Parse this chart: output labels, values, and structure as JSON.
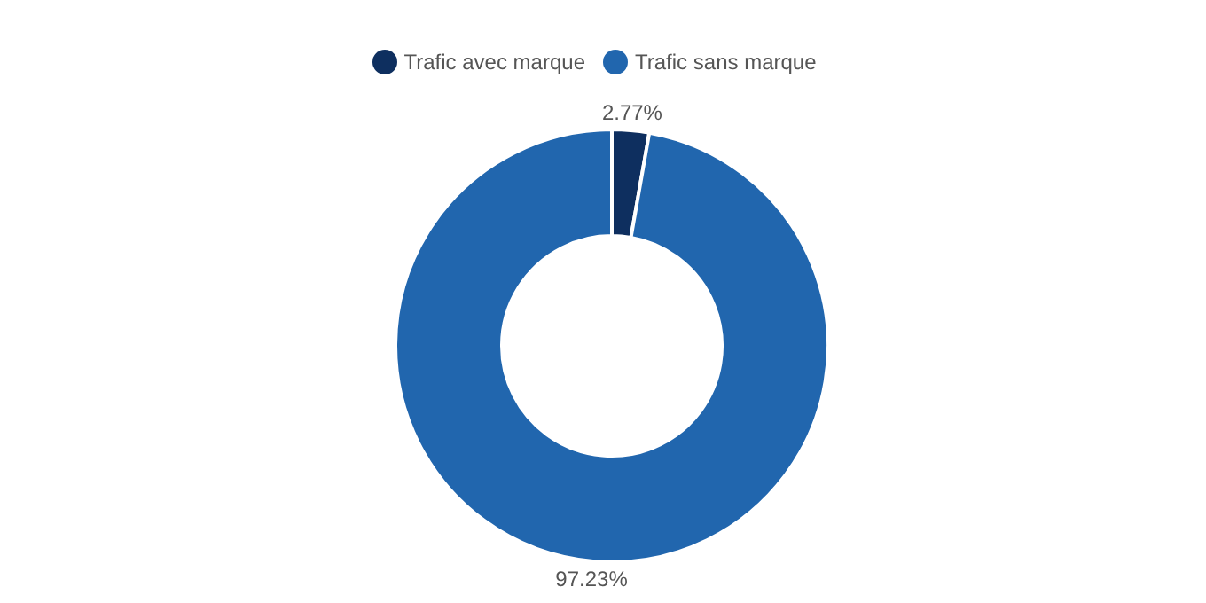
{
  "chart_data": {
    "type": "donut",
    "categories": [
      "Trafic avec marque",
      "Trafic sans marque"
    ],
    "values": [
      2.77,
      97.23
    ],
    "colors": [
      "#0e2f5f",
      "#2166ae"
    ],
    "value_labels": [
      "2.77%",
      "97.23%"
    ],
    "legend": "top"
  }
}
